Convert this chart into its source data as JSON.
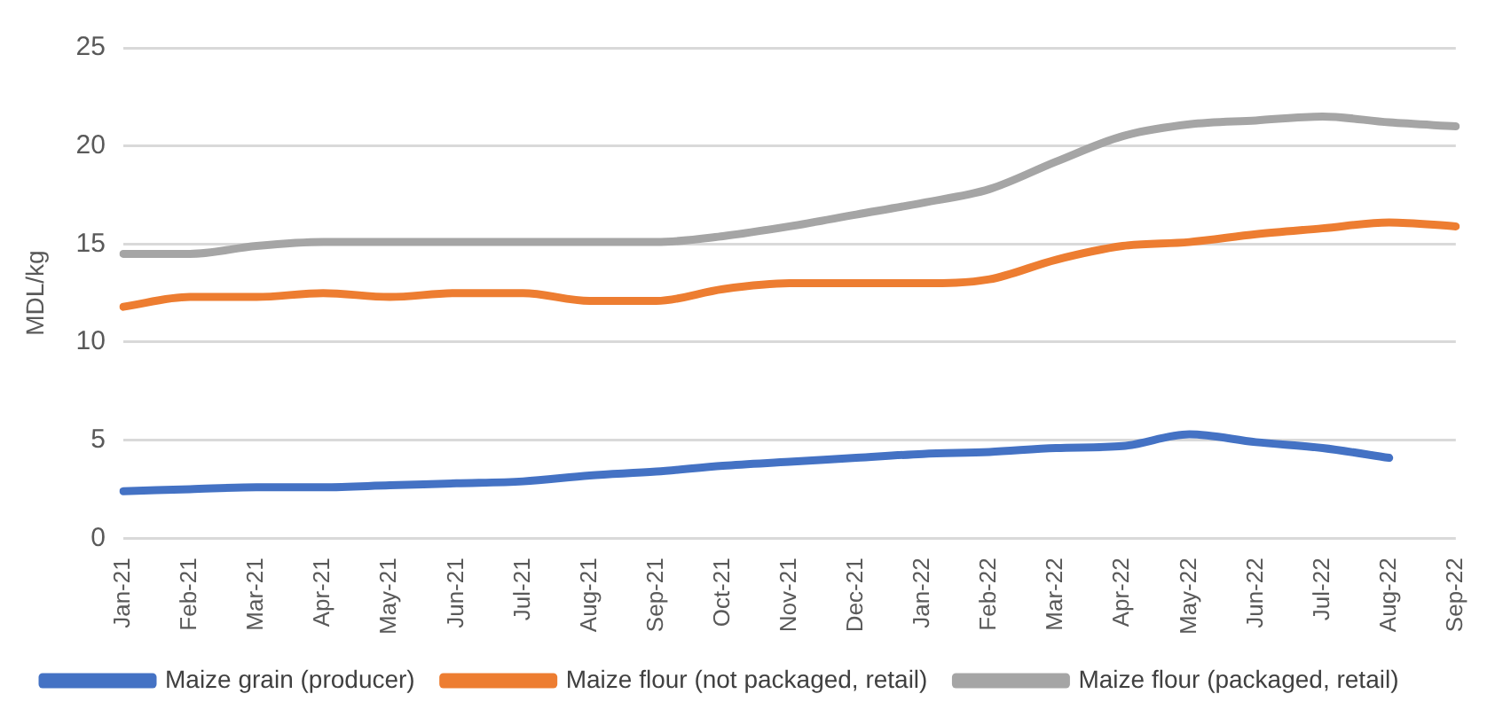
{
  "chart_data": {
    "type": "line",
    "ylabel": "MDL/kg",
    "categories": [
      "Jan-21",
      "Feb-21",
      "Mar-21",
      "Apr-21",
      "May-21",
      "Jun-21",
      "Jul-21",
      "Aug-21",
      "Sep-21",
      "Oct-21",
      "Nov-21",
      "Dec-21",
      "Jan-22",
      "Feb-22",
      "Mar-22",
      "Apr-22",
      "May-22",
      "Jun-22",
      "Jul-22",
      "Aug-22",
      "Sep-22"
    ],
    "series": [
      {
        "name": "Maize grain (producer)",
        "color": "#4472c4",
        "values": [
          2.4,
          2.5,
          2.6,
          2.6,
          2.7,
          2.8,
          2.9,
          3.2,
          3.4,
          3.7,
          3.9,
          4.1,
          4.3,
          4.4,
          4.6,
          4.7,
          5.3,
          4.9,
          4.6,
          4.1,
          null
        ]
      },
      {
        "name": "Maize flour (not packaged, retail)",
        "color": "#ed7d31",
        "values": [
          11.8,
          12.3,
          12.3,
          12.5,
          12.3,
          12.5,
          12.5,
          12.1,
          12.1,
          12.7,
          13.0,
          13.0,
          13.0,
          13.2,
          14.2,
          14.9,
          15.1,
          15.5,
          15.8,
          16.1,
          15.9
        ]
      },
      {
        "name": "Maize flour (packaged, retail)",
        "color": "#a5a5a5",
        "values": [
          14.5,
          14.5,
          14.9,
          15.1,
          15.1,
          15.1,
          15.1,
          15.1,
          15.1,
          15.4,
          15.9,
          16.5,
          17.1,
          17.8,
          19.2,
          20.5,
          21.1,
          21.3,
          21.5,
          21.2,
          21.0
        ]
      }
    ],
    "ylim": [
      0,
      25
    ],
    "yticks": [
      0,
      5,
      10,
      15,
      20,
      25
    ],
    "grid": "y",
    "legend": "bottom",
    "marker": "none",
    "line_style": "solid"
  }
}
